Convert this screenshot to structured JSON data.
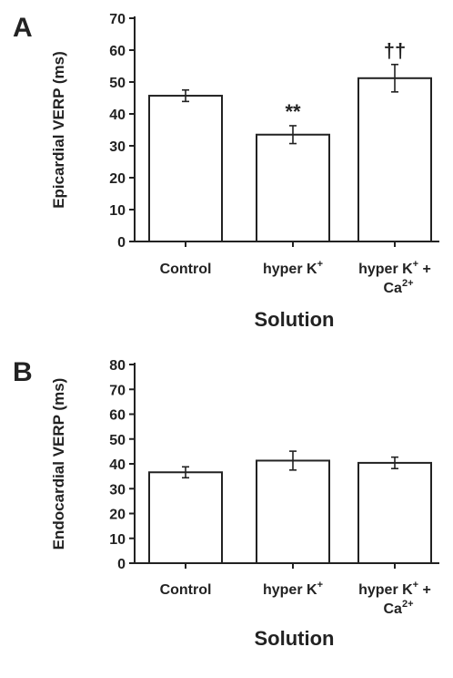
{
  "chart_data": [
    {
      "panel_label": "A",
      "type": "bar",
      "ylabel": "Epicardial VERP (ms)",
      "xlabel": "Solution",
      "ylim": [
        0,
        70
      ],
      "yticks": [
        0,
        10,
        20,
        30,
        40,
        50,
        60,
        70
      ],
      "categories": [
        {
          "main": "Control",
          "sup": "",
          "second_line": "",
          "second_sup": ""
        },
        {
          "main": "hyper K",
          "sup": "+",
          "second_line": "",
          "second_sup": ""
        },
        {
          "main": "hyper K",
          "sup": "+",
          "suffix": " +",
          "second_line": "Ca",
          "second_sup": "2+"
        }
      ],
      "values": [
        45.7,
        33.5,
        51.2
      ],
      "errors": [
        1.8,
        2.8,
        4.3
      ],
      "annotations": [
        "",
        "**",
        "††"
      ]
    },
    {
      "panel_label": "B",
      "type": "bar",
      "ylabel": "Endocardial VERP (ms)",
      "xlabel": "Solution",
      "ylim": [
        0,
        80
      ],
      "yticks": [
        0,
        10,
        20,
        30,
        40,
        50,
        60,
        70,
        80
      ],
      "categories": [
        {
          "main": "Control",
          "sup": "",
          "second_line": "",
          "second_sup": ""
        },
        {
          "main": "hyper K",
          "sup": "+",
          "second_line": "",
          "second_sup": ""
        },
        {
          "main": "hyper K",
          "sup": "+",
          "suffix": " +",
          "second_line": "Ca",
          "second_sup": "2+"
        }
      ],
      "values": [
        36.6,
        41.3,
        40.4
      ],
      "errors": [
        2.2,
        3.8,
        2.3
      ],
      "annotations": [
        "",
        "",
        ""
      ]
    }
  ]
}
